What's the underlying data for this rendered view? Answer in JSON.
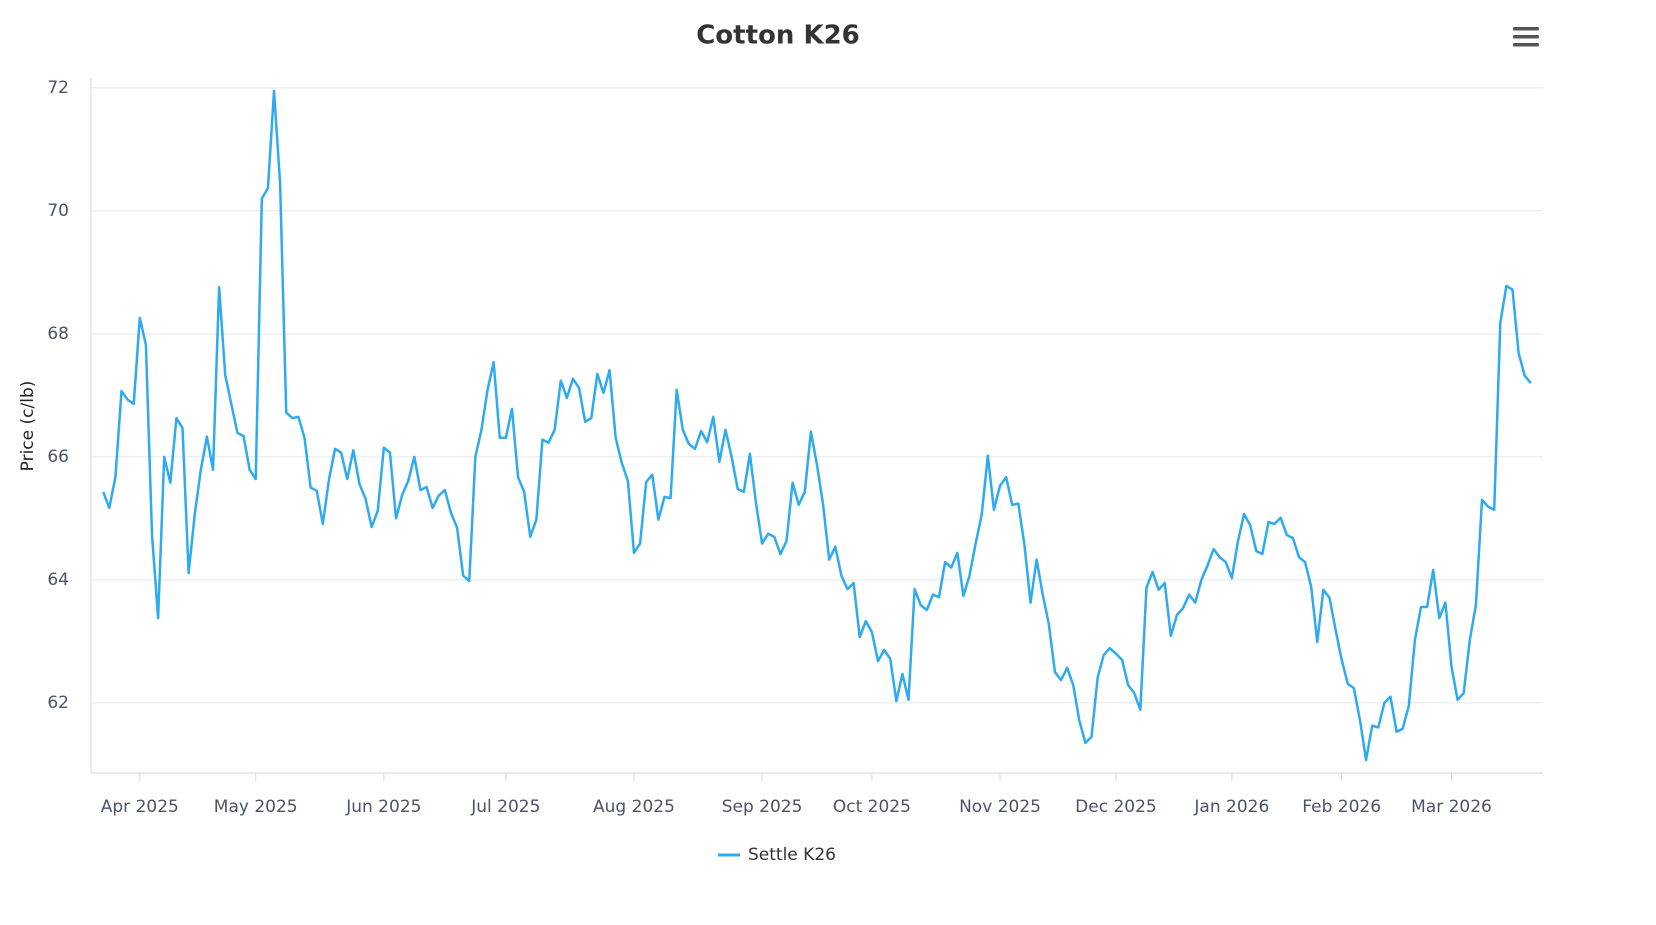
{
  "chart_data": {
    "type": "line",
    "title": "Cotton K26",
    "y_label": "Price (c/lb)",
    "grid": true,
    "legend": "bottom",
    "xlim": [
      -2,
      236
    ],
    "xticks": [
      {
        "value": 6,
        "label": "Apr 2025"
      },
      {
        "value": 25,
        "label": "May 2025"
      },
      {
        "value": 46,
        "label": "Jun 2025"
      },
      {
        "value": 66,
        "label": "Jul 2025"
      },
      {
        "value": 87,
        "label": "Aug 2025"
      },
      {
        "value": 108,
        "label": "Sep 2025"
      },
      {
        "value": 126,
        "label": "Oct 2025"
      },
      {
        "value": 147,
        "label": "Nov 2025"
      },
      {
        "value": 166,
        "label": "Dec 2025"
      },
      {
        "value": 185,
        "label": "Jan 2026"
      },
      {
        "value": 203,
        "label": "Feb 2026"
      },
      {
        "value": 221,
        "label": "Mar 2026"
      }
    ],
    "ylim": [
      60.86,
      72.16
    ],
    "yticks": [
      62,
      64,
      66,
      68,
      70,
      72
    ],
    "series": [
      {
        "name": "Settle K26",
        "color": "#2eaaf0",
        "values": [
          65.43,
          65.17,
          65.67,
          67.07,
          66.93,
          66.86,
          68.26,
          67.82,
          64.73,
          63.38,
          66.0,
          65.58,
          66.63,
          66.47,
          64.11,
          65.06,
          65.79,
          66.33,
          65.79,
          68.76,
          67.33,
          66.86,
          66.39,
          66.34,
          65.79,
          65.64,
          70.2,
          70.37,
          71.95,
          70.44,
          66.72,
          66.63,
          66.65,
          66.31,
          65.5,
          65.45,
          64.91,
          65.63,
          66.13,
          66.07,
          65.64,
          66.11,
          65.56,
          65.32,
          64.86,
          65.12,
          66.15,
          66.07,
          65.0,
          65.38,
          65.61,
          66.0,
          65.46,
          65.51,
          65.17,
          65.37,
          65.46,
          65.09,
          64.85,
          64.07,
          63.98,
          66.0,
          66.44,
          67.09,
          67.54,
          66.31,
          66.31,
          66.78,
          65.67,
          65.43,
          64.7,
          64.98,
          66.28,
          66.23,
          66.44,
          67.24,
          66.96,
          67.27,
          67.12,
          66.57,
          66.63,
          67.35,
          67.04,
          67.41,
          66.31,
          65.9,
          65.61,
          64.44,
          64.59,
          65.59,
          65.71,
          64.98,
          65.35,
          65.33,
          67.09,
          66.44,
          66.21,
          66.13,
          66.42,
          66.24,
          66.65,
          65.92,
          66.44,
          66.0,
          65.48,
          65.43,
          66.05,
          65.25,
          64.59,
          64.75,
          64.7,
          64.42,
          64.63,
          65.58,
          65.22,
          65.43,
          66.41,
          65.87,
          65.22,
          64.33,
          64.54,
          64.07,
          63.85,
          63.95,
          63.07,
          63.33,
          63.15,
          62.68,
          62.86,
          62.72,
          62.03,
          62.47,
          62.05,
          63.85,
          63.59,
          63.51,
          63.76,
          63.72,
          64.29,
          64.2,
          64.44,
          63.74,
          64.07,
          64.59,
          65.06,
          66.02,
          65.14,
          65.53,
          65.67,
          65.22,
          65.24,
          64.57,
          63.63,
          64.33,
          63.76,
          63.28,
          62.5,
          62.37,
          62.57,
          62.29,
          61.71,
          61.35,
          61.45,
          62.41,
          62.78,
          62.89,
          62.8,
          62.7,
          62.29,
          62.16,
          61.89,
          63.87,
          64.13,
          63.84,
          63.95,
          63.09,
          63.43,
          63.54,
          63.76,
          63.63,
          64.0,
          64.23,
          64.5,
          64.37,
          64.29,
          64.03,
          64.63,
          65.07,
          64.89,
          64.47,
          64.42,
          64.94,
          64.91,
          65.01,
          64.73,
          64.68,
          64.37,
          64.29,
          63.89,
          62.99,
          63.84,
          63.71,
          63.19,
          62.7,
          62.31,
          62.24,
          61.72,
          61.07,
          61.63,
          61.6,
          62.0,
          62.1,
          61.53,
          61.58,
          61.95,
          63.02,
          63.56,
          63.56,
          64.16,
          63.38,
          63.63,
          62.59,
          62.05,
          62.16,
          63.02,
          63.59,
          65.3,
          65.19,
          65.14,
          68.18,
          68.78,
          68.72,
          67.69,
          67.32,
          67.2
        ]
      }
    ]
  }
}
